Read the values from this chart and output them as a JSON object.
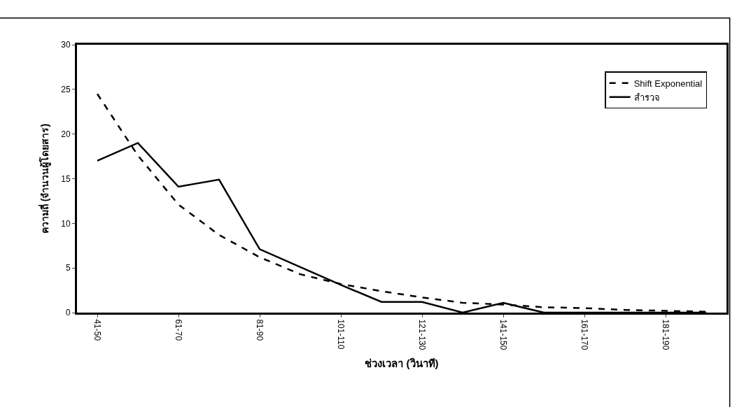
{
  "chart_data": {
    "type": "line",
    "xlabel": "ช่วงเวลา (วินาที)",
    "ylabel": "ความถี่ (จำนวนผู้โดยสาร)",
    "categories": [
      "41-50",
      null,
      "61-70",
      null,
      "81-90",
      null,
      "101-110",
      null,
      "121-130",
      null,
      "141-150",
      null,
      "161-170",
      null,
      "181-190",
      null
    ],
    "series": [
      {
        "name": "Shift Exponential",
        "color": "#000000",
        "line_style": "dashed",
        "values": [
          24.5,
          17.6,
          12.1,
          8.7,
          6.2,
          4.3,
          3.2,
          2.4,
          1.7,
          1.1,
          0.9,
          0.6,
          0.5,
          0.3,
          0.2,
          0.1
        ]
      },
      {
        "name": "สำรวจ",
        "color": "#000000",
        "line_style": "solid",
        "values": [
          17,
          19,
          14.1,
          14.9,
          7.1,
          5.1,
          3.1,
          1.2,
          1.2,
          0,
          1.1,
          0,
          0,
          0,
          0,
          0
        ]
      }
    ],
    "ylim": [
      0,
      30
    ],
    "yticks": [
      0,
      5,
      10,
      15,
      20,
      25,
      30
    ],
    "grid": false,
    "legend": "top right",
    "marker": "none"
  }
}
